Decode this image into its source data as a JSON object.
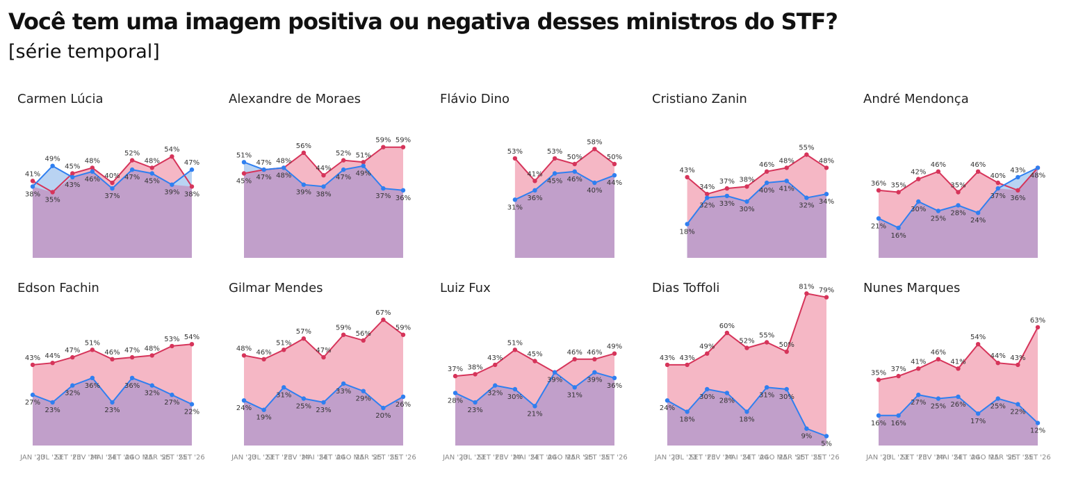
{
  "header": {
    "title": "Você tem uma imagem positiva ou negativa desses ministros do STF?",
    "subtitle": "[série temporal]"
  },
  "colors": {
    "negative": "#d6345a",
    "positive": "#2f7ff0",
    "negative_fill": "#f5b7c5",
    "positive_fill": "#b9d3f2",
    "overlap_fill": "#c19fca"
  },
  "x_ticks": [
    "JAN '23",
    "JUL '23",
    "SET '23",
    "FEV '24",
    "MAI '24",
    "SET '24",
    "AGO '25",
    "MAR '25",
    "SET '25",
    "SET '26"
  ],
  "chart_data": [
    {
      "type": "area",
      "title": "Carmen Lúcia",
      "x_start": 0,
      "series": [
        {
          "color": "#d6345a",
          "values": [
            41,
            35,
            45,
            48,
            40,
            52,
            48,
            54,
            38
          ],
          "labels": [
            "41%",
            "35%",
            "45%",
            "48%",
            "40%",
            "52%",
            "48%",
            "54%",
            "38%"
          ]
        },
        {
          "color": "#2f7ff0",
          "values": [
            38,
            49,
            43,
            46,
            37,
            47,
            45,
            39,
            47
          ],
          "labels": [
            "38%",
            "49%",
            "43%",
            "46%",
            "37%",
            "47%",
            "45%",
            "39%",
            "47%"
          ]
        }
      ]
    },
    {
      "type": "area",
      "title": "Alexandre de Moraes",
      "x_start": 0,
      "series": [
        {
          "color": "#d6345a",
          "values": [
            45,
            47,
            48,
            56,
            44,
            52,
            51,
            59,
            59
          ],
          "labels": [
            "45%",
            "47%",
            "48%",
            "56%",
            "44%",
            "52%",
            "51%",
            "59%",
            "59%"
          ]
        },
        {
          "color": "#2f7ff0",
          "values": [
            51,
            47,
            48,
            39,
            38,
            47,
            49,
            37,
            36
          ],
          "labels": [
            "51%",
            "47%",
            "48%",
            "39%",
            "38%",
            "47%",
            "49%",
            "37%",
            "36%"
          ]
        }
      ]
    },
    {
      "type": "area",
      "title": "Flávio Dino",
      "x_start": 3,
      "series": [
        {
          "color": "#d6345a",
          "values": [
            53,
            41,
            53,
            50,
            58,
            50
          ],
          "labels": [
            "53%",
            "41%",
            "53%",
            "50%",
            "58%",
            "50%"
          ]
        },
        {
          "color": "#2f7ff0",
          "values": [
            31,
            36,
            45,
            46,
            40,
            44
          ],
          "labels": [
            "31%",
            "36%",
            "45%",
            "46%",
            "40%",
            "44%"
          ]
        }
      ]
    },
    {
      "type": "area",
      "title": "Cristiano Zanin",
      "x_start": 1,
      "series": [
        {
          "color": "#d6345a",
          "values": [
            43,
            34,
            37,
            38,
            46,
            48,
            55,
            48
          ],
          "labels": [
            "43%",
            "34%",
            "37%",
            "38%",
            "46%",
            "48%",
            "55%",
            "48%"
          ]
        },
        {
          "color": "#2f7ff0",
          "values": [
            18,
            32,
            33,
            30,
            40,
            41,
            32,
            34
          ],
          "labels": [
            "18%",
            "32%",
            "33%",
            "30%",
            "40%",
            "41%",
            "32%",
            "34%"
          ]
        }
      ]
    },
    {
      "type": "area",
      "title": "André Mendonça",
      "x_start": 0,
      "series": [
        {
          "color": "#d6345a",
          "values": [
            36,
            35,
            42,
            46,
            35,
            46,
            40,
            36,
            48
          ],
          "labels": [
            "36%",
            "35%",
            "42%",
            "46%",
            "35%",
            "46%",
            "40%",
            "36%",
            ""
          ]
        },
        {
          "color": "#2f7ff0",
          "values": [
            21,
            16,
            30,
            25,
            28,
            24,
            37,
            43,
            48
          ],
          "labels": [
            "21%",
            "16%",
            "30%",
            "25%",
            "28%",
            "24%",
            "37%",
            "43%",
            "48%"
          ]
        }
      ]
    },
    {
      "type": "area",
      "title": "Edson Fachin",
      "x_start": 0,
      "series": [
        {
          "color": "#d6345a",
          "values": [
            43,
            44,
            47,
            51,
            46,
            47,
            48,
            53,
            54
          ],
          "labels": [
            "43%",
            "44%",
            "47%",
            "51%",
            "46%",
            "47%",
            "48%",
            "53%",
            "54%"
          ]
        },
        {
          "color": "#2f7ff0",
          "values": [
            27,
            23,
            32,
            36,
            23,
            36,
            32,
            27,
            22
          ],
          "labels": [
            "27%",
            "23%",
            "32%",
            "36%",
            "23%",
            "36%",
            "32%",
            "27%",
            "22%"
          ]
        }
      ]
    },
    {
      "type": "area",
      "title": "Gilmar Mendes",
      "x_start": 0,
      "series": [
        {
          "color": "#d6345a",
          "values": [
            48,
            46,
            51,
            57,
            47,
            59,
            56,
            67,
            59
          ],
          "labels": [
            "48%",
            "46%",
            "51%",
            "57%",
            "47%",
            "59%",
            "56%",
            "67%",
            "59%"
          ]
        },
        {
          "color": "#2f7ff0",
          "values": [
            24,
            19,
            31,
            25,
            23,
            33,
            29,
            20,
            26
          ],
          "labels": [
            "24%",
            "19%",
            "31%",
            "25%",
            "23%",
            "33%",
            "29%",
            "20%",
            "26%"
          ]
        }
      ]
    },
    {
      "type": "area",
      "title": "Luiz Fux",
      "x_start": 0,
      "series": [
        {
          "color": "#d6345a",
          "values": [
            37,
            38,
            43,
            51,
            45,
            39,
            46,
            46,
            49
          ],
          "labels": [
            "37%",
            "38%",
            "43%",
            "51%",
            "45%",
            "",
            "46%",
            "46%",
            "49%"
          ]
        },
        {
          "color": "#2f7ff0",
          "values": [
            28,
            23,
            32,
            30,
            21,
            39,
            31,
            39,
            36
          ],
          "labels": [
            "28%",
            "23%",
            "32%",
            "30%",
            "21%",
            "39%",
            "31%",
            "39%",
            "36%"
          ]
        }
      ]
    },
    {
      "type": "area",
      "title": "Dias Toffoli",
      "x_start": 0,
      "series": [
        {
          "color": "#d6345a",
          "values": [
            43,
            43,
            49,
            60,
            52,
            55,
            50,
            81,
            79
          ],
          "labels": [
            "43%",
            "43%",
            "49%",
            "60%",
            "52%",
            "55%",
            "50%",
            "81%",
            "79%"
          ]
        },
        {
          "color": "#2f7ff0",
          "values": [
            24,
            18,
            30,
            28,
            18,
            31,
            30,
            9,
            5
          ],
          "labels": [
            "24%",
            "18%",
            "30%",
            "28%",
            "18%",
            "31%",
            "30%",
            "9%",
            "5%"
          ]
        }
      ]
    },
    {
      "type": "area",
      "title": "Nunes Marques",
      "x_start": 0,
      "series": [
        {
          "color": "#d6345a",
          "values": [
            35,
            37,
            41,
            46,
            41,
            54,
            44,
            43,
            63
          ],
          "labels": [
            "35%",
            "37%",
            "41%",
            "46%",
            "41%",
            "54%",
            "44%",
            "43%",
            "63%"
          ]
        },
        {
          "color": "#2f7ff0",
          "values": [
            16,
            16,
            27,
            25,
            26,
            17,
            25,
            22,
            12
          ],
          "labels": [
            "16%",
            "16%",
            "27%",
            "25%",
            "26%",
            "17%",
            "25%",
            "22%",
            "12%"
          ]
        }
      ]
    }
  ]
}
